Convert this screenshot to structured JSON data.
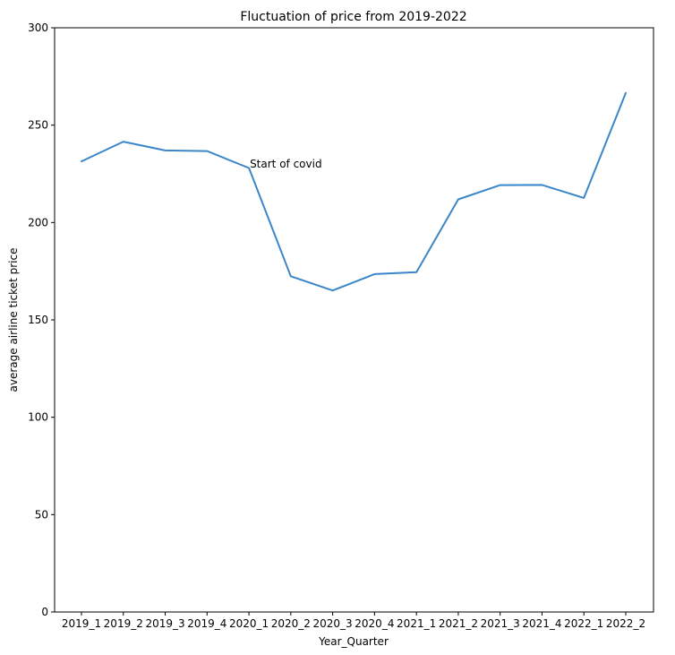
{
  "chart_data": {
    "type": "line",
    "title": "Fluctuation of price from 2019-2022",
    "xlabel": "Year_Quarter",
    "ylabel": "average airline ticket price",
    "categories": [
      "2019_1",
      "2019_2",
      "2019_3",
      "2019_4",
      "2020_1",
      "2020_2",
      "2020_3",
      "2020_4",
      "2021_1",
      "2021_2",
      "2021_3",
      "2021_4",
      "2022_1",
      "2022_2"
    ],
    "series": [
      {
        "values": [
          231.4,
          241.5,
          237.0,
          236.7,
          228.0,
          172.4,
          165.1,
          173.5,
          174.5,
          211.9,
          219.2,
          219.3,
          212.6,
          266.5
        ]
      }
    ],
    "ylim": [
      0,
      300
    ],
    "yticks": [
      0,
      50,
      100,
      150,
      200,
      250,
      300
    ],
    "grid": false,
    "annotations": [
      {
        "text": "Start of covid",
        "x": "2020_1",
        "y": 230
      }
    ],
    "colors": {
      "line": "#3a86c8",
      "axis": "#000000"
    }
  }
}
